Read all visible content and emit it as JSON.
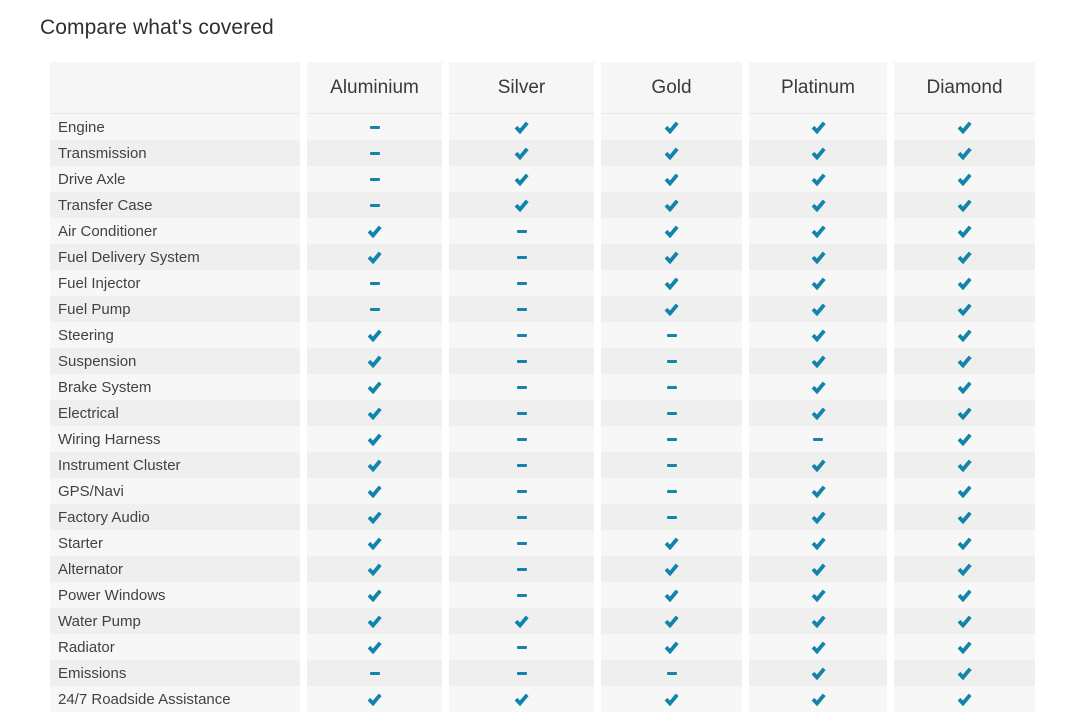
{
  "title": "Compare what's covered",
  "table": {
    "columns": [
      "Aluminium",
      "Silver",
      "Gold",
      "Platinum",
      "Diamond"
    ],
    "value_icons": {
      "check": "check-icon",
      "dash": "dash-icon"
    },
    "rows": [
      {
        "label": "Engine",
        "values": [
          "dash",
          "check",
          "check",
          "check",
          "check"
        ]
      },
      {
        "label": "Transmission",
        "values": [
          "dash",
          "check",
          "check",
          "check",
          "check"
        ]
      },
      {
        "label": "Drive Axle",
        "values": [
          "dash",
          "check",
          "check",
          "check",
          "check"
        ]
      },
      {
        "label": "Transfer Case",
        "values": [
          "dash",
          "check",
          "check",
          "check",
          "check"
        ]
      },
      {
        "label": "Air Conditioner",
        "values": [
          "check",
          "dash",
          "check",
          "check",
          "check"
        ]
      },
      {
        "label": "Fuel Delivery System",
        "values": [
          "check",
          "dash",
          "check",
          "check",
          "check"
        ]
      },
      {
        "label": "Fuel Injector",
        "values": [
          "dash",
          "dash",
          "check",
          "check",
          "check"
        ]
      },
      {
        "label": "Fuel Pump",
        "values": [
          "dash",
          "dash",
          "check",
          "check",
          "check"
        ]
      },
      {
        "label": "Steering",
        "values": [
          "check",
          "dash",
          "dash",
          "check",
          "check"
        ]
      },
      {
        "label": "Suspension",
        "values": [
          "check",
          "dash",
          "dash",
          "check",
          "check"
        ]
      },
      {
        "label": "Brake System",
        "values": [
          "check",
          "dash",
          "dash",
          "check",
          "check"
        ]
      },
      {
        "label": "Electrical",
        "values": [
          "check",
          "dash",
          "dash",
          "check",
          "check"
        ]
      },
      {
        "label": "Wiring Harness",
        "values": [
          "check",
          "dash",
          "dash",
          "dash",
          "check"
        ]
      },
      {
        "label": "Instrument Cluster",
        "values": [
          "check",
          "dash",
          "dash",
          "check",
          "check"
        ]
      },
      {
        "label": "GPS/Navi",
        "values": [
          "check",
          "dash",
          "dash",
          "check",
          "check"
        ]
      },
      {
        "label": "Factory Audio",
        "values": [
          "check",
          "dash",
          "dash",
          "check",
          "check"
        ]
      },
      {
        "label": "Starter",
        "values": [
          "check",
          "dash",
          "check",
          "check",
          "check"
        ]
      },
      {
        "label": "Alternator",
        "values": [
          "check",
          "dash",
          "check",
          "check",
          "check"
        ]
      },
      {
        "label": "Power Windows",
        "values": [
          "check",
          "dash",
          "check",
          "check",
          "check"
        ]
      },
      {
        "label": "Water Pump",
        "values": [
          "check",
          "check",
          "check",
          "check",
          "check"
        ]
      },
      {
        "label": "Radiator",
        "values": [
          "check",
          "dash",
          "check",
          "check",
          "check"
        ]
      },
      {
        "label": "Emissions",
        "values": [
          "dash",
          "dash",
          "dash",
          "check",
          "check"
        ]
      },
      {
        "label": "24/7 Roadside Assistance",
        "values": [
          "check",
          "check",
          "check",
          "check",
          "check"
        ]
      }
    ]
  },
  "colors": {
    "accent": "#1283ab",
    "row_odd": "#f7f7f7",
    "row_even": "#efefef",
    "header_bg": "#f6f6f6",
    "title_text": "#2f2f2f",
    "header_text": "#3a3a3a",
    "label_text": "#424242"
  }
}
